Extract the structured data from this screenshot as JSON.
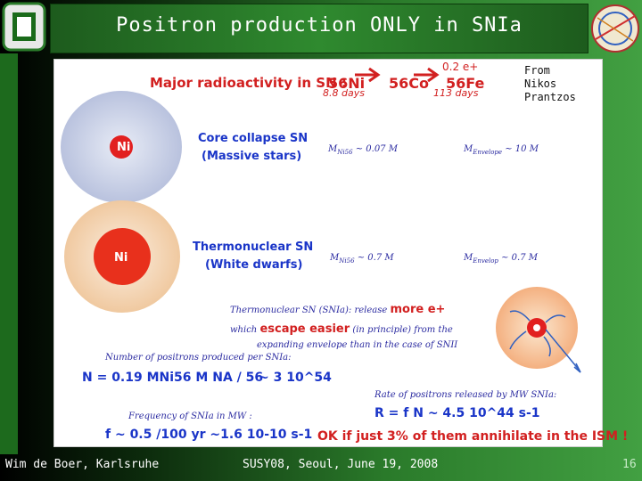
{
  "slide": {
    "title": "Positron production ONLY in SNIa",
    "credit": [
      "From",
      "Nikos",
      "Prantzos"
    ],
    "page_number": "16"
  },
  "header_line": {
    "text": "Major radioactivity in SN :",
    "ni": "56Ni",
    "co": "56Co",
    "fe": "56Fe",
    "t1": "8.8 days",
    "t2": "113 days",
    "positrons": "0.2 e+"
  },
  "core_collapse": {
    "label": "Ni",
    "title": "Core collapse SN",
    "subtitle": "(Massive stars)",
    "m_ni": "M",
    "m_ni_sub": "Ni56",
    "m_ni_val": "~ 0.07 M",
    "m_env": "M",
    "m_env_sub": "Envelope",
    "m_env_val": "~ 10 M"
  },
  "thermonuclear": {
    "label": "Ni",
    "title": "Thermonuclear SN",
    "subtitle": "(White dwarfs)",
    "m_ni": "M",
    "m_ni_sub": "Ni56",
    "m_ni_val": "~ 0.7 M",
    "m_env": "M",
    "m_env_sub": "Envelop",
    "m_env_val": "~ 0.7 M"
  },
  "release": {
    "line1": "Thermonuclear SN (SNIa): release",
    "line1_bold": "more e+",
    "line2_prefix": "which",
    "line2_bold": "escape easier",
    "line2_suffix": "(in principle) from the",
    "line3": "expanding envelope than in the case of SNII"
  },
  "positrons": {
    "label": "Number of positrons produced per SNIa:",
    "formula": "N = 0.19 MNi56 M NA / 56",
    "result": "~ 3 10^54"
  },
  "rate": {
    "label": "Rate of positrons released by MW SNIa:",
    "formula": "R = f N ~ 4.5 10^44 s-1"
  },
  "frequency": {
    "label": "Frequency of SNIa in MW :",
    "formula": "f ~ 0.5 /100 yr ~1.6 10-10 s-1"
  },
  "conclusion": "OK if just 3% of them annihilate in the ISM !",
  "footer": {
    "left": "Wim de Boer, Karlsruhe",
    "center": "SUSY08, Seoul, June 19, 2008"
  },
  "colors": {
    "accent_red": "#d22020",
    "accent_blue": "#1a35c8",
    "title_green": "#2f8a2f"
  }
}
